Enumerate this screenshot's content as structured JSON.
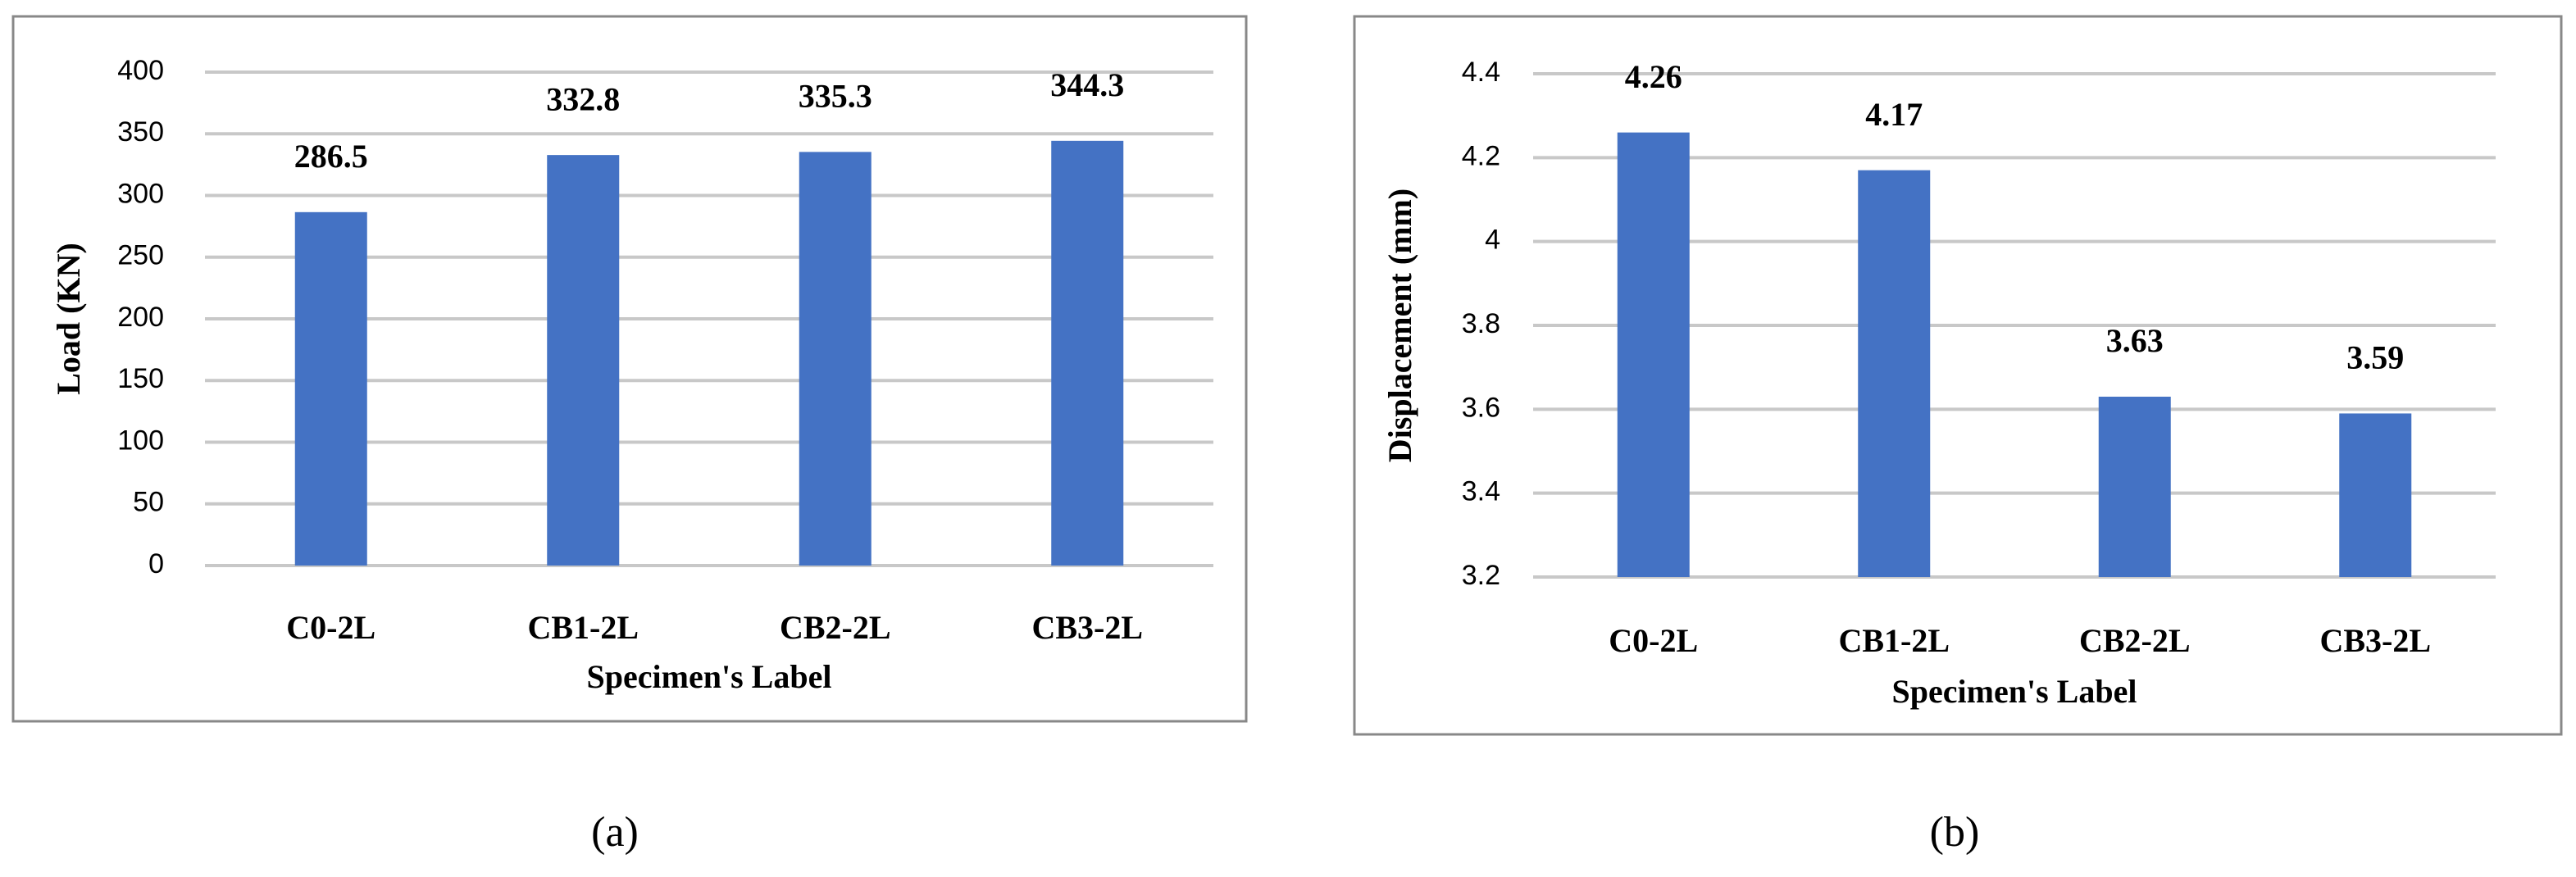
{
  "chart_data": [
    {
      "type": "bar",
      "caption": "(a)",
      "x_label": "Specimen's Label",
      "y_label": "Load (KN)",
      "categories": [
        "C0-2L",
        "CB1-2L",
        "CB2-2L",
        "CB3-2L"
      ],
      "values": [
        286.5,
        332.8,
        335.3,
        344.3
      ],
      "color": "#4472c4",
      "ylim": [
        0,
        400
      ],
      "yticks": [
        0,
        50,
        100,
        150,
        200,
        250,
        300,
        350,
        400
      ],
      "grid": true
    },
    {
      "type": "bar",
      "caption": "(b)",
      "x_label": "Specimen's Label",
      "y_label": "Displacement (mm)",
      "categories": [
        "C0-2L",
        "CB1-2L",
        "CB2-2L",
        "CB3-2L"
      ],
      "values": [
        4.26,
        4.17,
        3.63,
        3.59
      ],
      "color": "#4472c4",
      "ylim": [
        3.2,
        4.4
      ],
      "yticks": [
        3.2,
        3.4,
        3.6,
        3.8,
        4,
        4.2,
        4.4
      ],
      "grid": true
    }
  ]
}
